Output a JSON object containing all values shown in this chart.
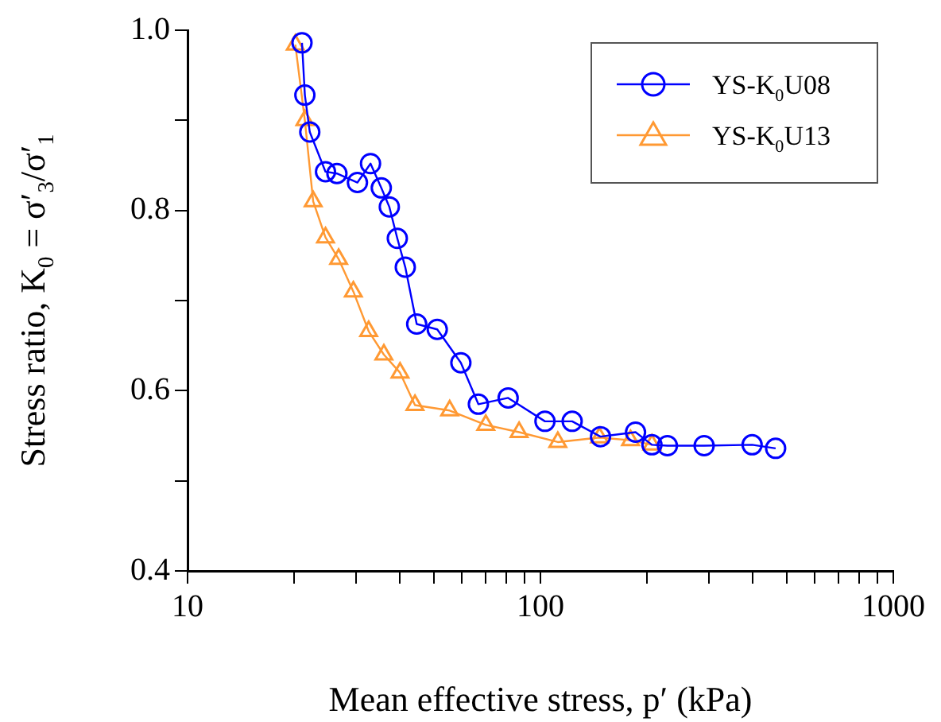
{
  "chart_data": {
    "type": "line",
    "xlabel": "Mean effective stress, p′ (kPa)",
    "ylabel": "Stress ratio, K$_{0}$ = σ′$_{3}$/σ′$_{1}$",
    "log": "x",
    "xlim": [
      10,
      1000
    ],
    "xticks": [
      10,
      {
        "value": 20,
        "label": null
      },
      {
        "value": 30,
        "label": null
      },
      {
        "value": 40,
        "label": null
      },
      {
        "value": 50,
        "label": null
      },
      {
        "value": 60,
        "label": null
      },
      {
        "value": 70,
        "label": null
      },
      {
        "value": 80,
        "label": null
      },
      {
        "value": 90,
        "label": null
      },
      100,
      {
        "value": 200,
        "label": null
      },
      {
        "value": 300,
        "label": null
      },
      {
        "value": 400,
        "label": null
      },
      {
        "value": 500,
        "label": null
      },
      {
        "value": 600,
        "label": null
      },
      {
        "value": 700,
        "label": null
      },
      {
        "value": 800,
        "label": null
      },
      {
        "value": 900,
        "label": null
      },
      1000
    ],
    "ylim": [
      0.4,
      1.0
    ],
    "yticks": [
      {
        "value": 0.4,
        "label": "0.4"
      },
      {
        "value": 0.5,
        "label": null
      },
      {
        "value": 0.6,
        "label": "0.6"
      },
      {
        "value": 0.7,
        "label": null
      },
      {
        "value": 0.8,
        "label": "0.8"
      },
      {
        "value": 0.9,
        "label": null
      },
      {
        "value": 1.0,
        "label": "1.0"
      }
    ],
    "grid": false,
    "legend": "top right",
    "line_style": "solid",
    "series": [
      {
        "name": "YS-K$_{0}$U08",
        "color": "#0000ff",
        "marker": "circle",
        "x": [
          21.1,
          21.5,
          22.2,
          24.6,
          26.5,
          30.3,
          33,
          35.4,
          37.3,
          39.3,
          41.4,
          44.6,
          51,
          59.5,
          66.7,
          81,
          103,
          123,
          148,
          186,
          207,
          229,
          291,
          398,
          464
        ],
        "values": [
          0.986,
          0.928,
          0.887,
          0.843,
          0.841,
          0.831,
          0.852,
          0.825,
          0.804,
          0.769,
          0.737,
          0.674,
          0.668,
          0.631,
          0.585,
          0.592,
          0.566,
          0.566,
          0.549,
          0.554,
          0.54,
          0.539,
          0.539,
          0.54,
          0.536
        ]
      },
      {
        "name": "YS-K$_{0}$U13",
        "color": "#ff9933",
        "marker": "triangle",
        "x": [
          20.2,
          21.5,
          22.7,
          24.6,
          26.8,
          29.5,
          32.6,
          36,
          40,
          44.1,
          55.3,
          70,
          87,
          112,
          147,
          180,
          207
        ],
        "values": [
          0.984,
          0.9,
          0.81,
          0.77,
          0.746,
          0.71,
          0.666,
          0.64,
          0.62,
          0.584,
          0.578,
          0.562,
          0.554,
          0.543,
          0.548,
          0.545,
          0.54
        ]
      }
    ]
  }
}
